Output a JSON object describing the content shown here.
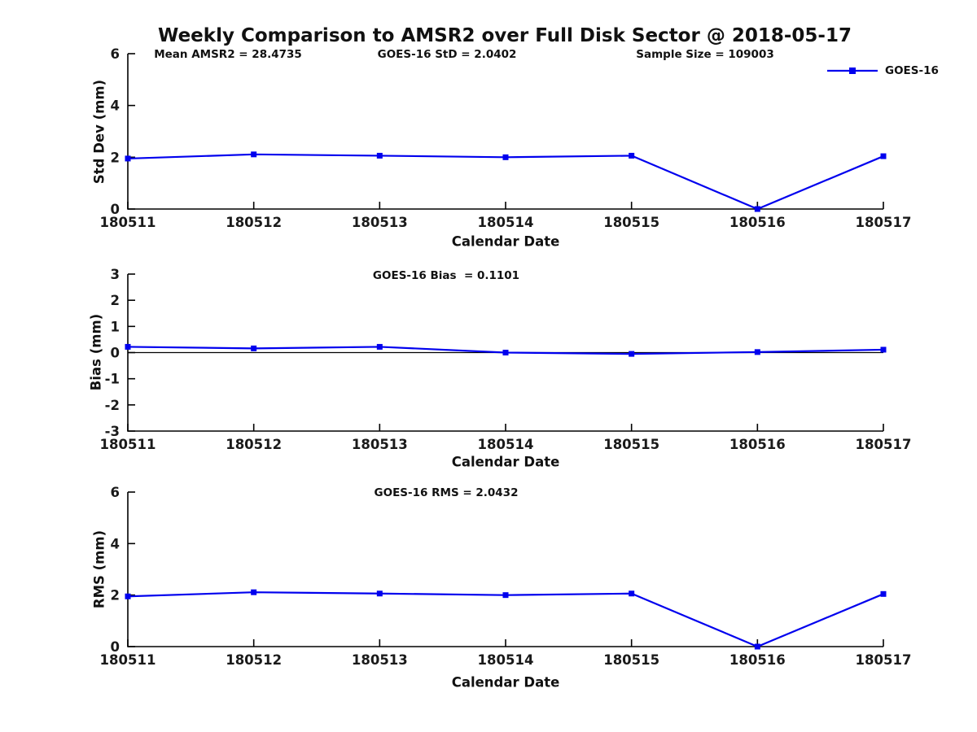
{
  "title": "Weekly Comparison to AMSR2 over Full Disk Sector @ 2018-05-17",
  "xlabel": "Calendar Date",
  "dates": [
    "180511",
    "180512",
    "180513",
    "180514",
    "180515",
    "180516",
    "180517"
  ],
  "legend": {
    "label": "GOES-16"
  },
  "colors": {
    "series": "#0000EE",
    "axis": "#000000"
  },
  "chart_data": [
    {
      "id": "std-dev",
      "type": "line",
      "title": "Weekly Comparison to AMSR2 over Full Disk Sector @ 2018-05-17",
      "xlabel": "Calendar Date",
      "ylabel": "Std Dev (mm)",
      "ylim": [
        0,
        6
      ],
      "yticks": [
        0,
        2,
        4,
        6
      ],
      "categories": [
        "180511",
        "180512",
        "180513",
        "180514",
        "180515",
        "180516",
        "180517"
      ],
      "series": [
        {
          "name": "GOES-16",
          "values": [
            1.95,
            2.11,
            2.06,
            2.0,
            2.06,
            0.0,
            2.0402
          ]
        }
      ],
      "annotations": [
        "Mean AMSR2 = 28.4735",
        "GOES-16 StD = 2.0402",
        "Sample Size = 109003"
      ],
      "zero_line": false,
      "legend_position": "top-right",
      "grid": false
    },
    {
      "id": "bias",
      "type": "line",
      "xlabel": "Calendar Date",
      "ylabel": "Bias (mm)",
      "ylim": [
        -3,
        3
      ],
      "yticks": [
        -3,
        -2,
        -1,
        0,
        1,
        2,
        3
      ],
      "categories": [
        "180511",
        "180512",
        "180513",
        "180514",
        "180515",
        "180516",
        "180517"
      ],
      "series": [
        {
          "name": "GOES-16",
          "values": [
            0.22,
            0.16,
            0.22,
            0.0,
            -0.05,
            0.02,
            0.1101
          ]
        }
      ],
      "annotations": [
        "GOES-16 Bias  = 0.1101"
      ],
      "zero_line": true,
      "grid": false
    },
    {
      "id": "rms",
      "type": "line",
      "xlabel": "Calendar Date",
      "ylabel": "RMS (mm)",
      "ylim": [
        0,
        6
      ],
      "yticks": [
        0,
        2,
        4,
        6
      ],
      "categories": [
        "180511",
        "180512",
        "180513",
        "180514",
        "180515",
        "180516",
        "180517"
      ],
      "series": [
        {
          "name": "GOES-16",
          "values": [
            1.95,
            2.11,
            2.06,
            2.0,
            2.06,
            0.0,
            2.0432
          ]
        }
      ],
      "annotations": [
        "GOES-16 RMS = 2.0432"
      ],
      "zero_line": false,
      "grid": false
    }
  ]
}
